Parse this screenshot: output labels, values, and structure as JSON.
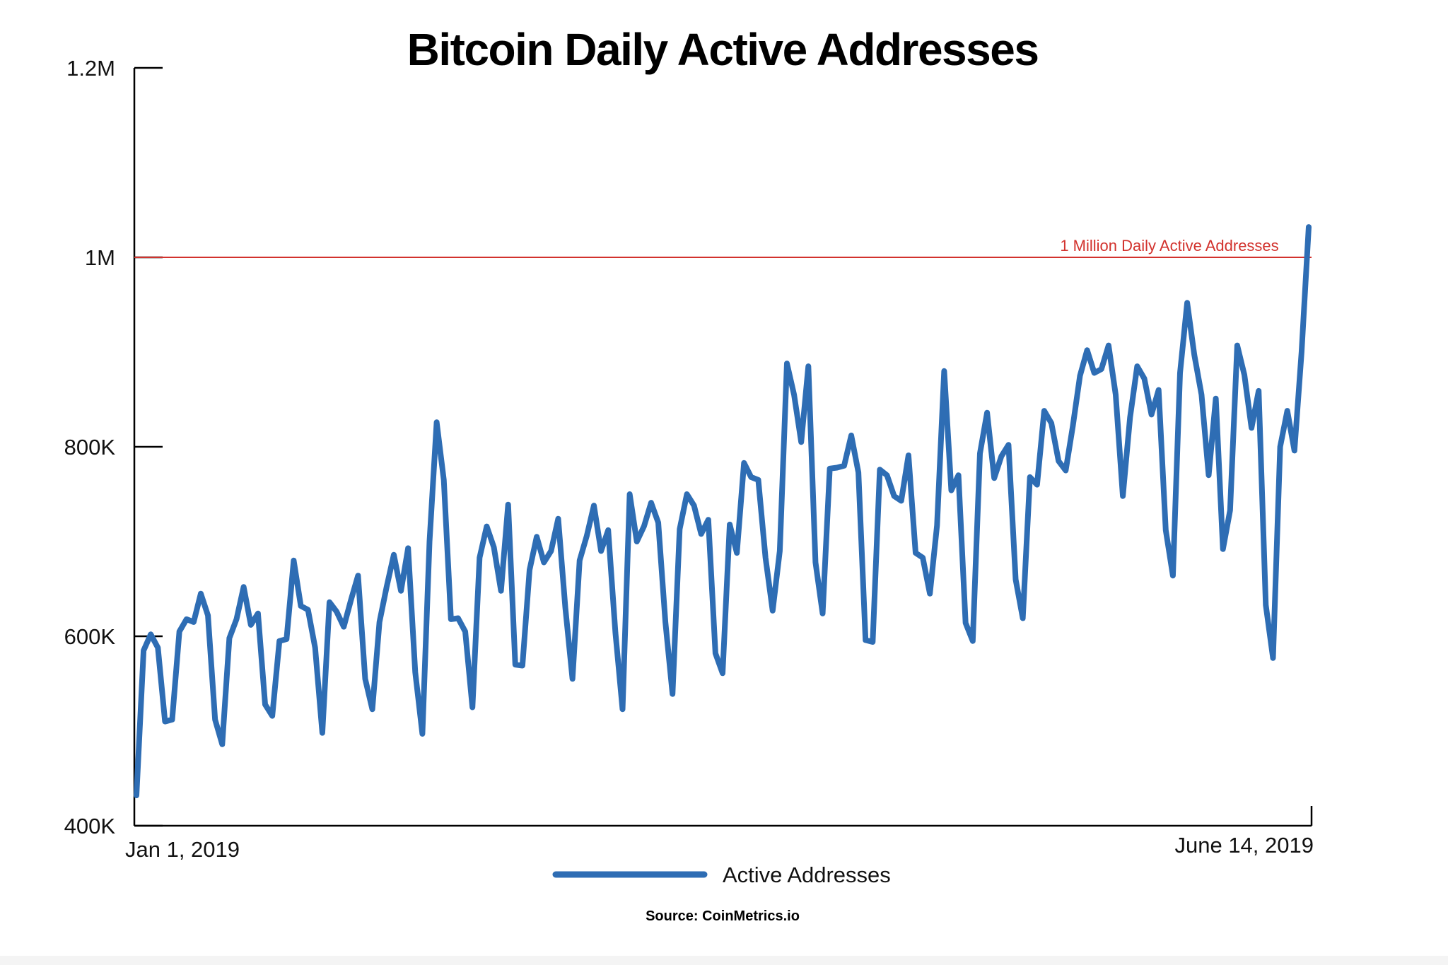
{
  "chart_data": {
    "type": "line",
    "title": "Bitcoin Daily Active Addresses",
    "xlabel": "",
    "ylabel": "",
    "ylim": [
      400000,
      1200000
    ],
    "yticks": [
      {
        "value": 400000,
        "label": "400K"
      },
      {
        "value": 600000,
        "label": "600K"
      },
      {
        "value": 800000,
        "label": "800K"
      },
      {
        "value": 1000000,
        "label": "1M"
      },
      {
        "value": 1200000,
        "label": "1.2M"
      }
    ],
    "x_start_label": "Jan 1, 2019",
    "x_end_label": "June 14, 2019",
    "grid": false,
    "legend_position": "bottom-center",
    "reference_line": {
      "value": 1000000,
      "label": "1 Million Daily Active Addresses",
      "color": "#d2322d"
    },
    "series": [
      {
        "name": "Active Addresses",
        "color": "#2e6db4",
        "x": [
          1,
          2,
          3,
          4,
          5,
          6,
          7,
          8,
          9,
          10,
          11,
          12,
          13,
          14,
          15,
          16,
          17,
          18,
          19,
          20,
          21,
          22,
          23,
          24,
          25,
          26,
          27,
          28,
          29,
          30,
          31,
          32,
          33,
          34,
          35,
          36,
          37,
          38,
          39,
          40,
          41,
          42,
          43,
          44,
          45,
          46,
          47,
          48,
          49,
          50,
          51,
          52,
          53,
          54,
          55,
          56,
          57,
          58,
          59,
          60,
          61,
          62,
          63,
          64,
          65,
          66,
          67,
          68,
          69,
          70,
          71,
          72,
          73,
          74,
          75,
          76,
          77,
          78,
          79,
          80,
          81,
          82,
          83,
          84,
          85,
          86,
          87,
          88,
          89,
          90,
          91,
          92,
          93,
          94,
          95,
          96,
          97,
          98,
          99,
          100,
          101,
          102,
          103,
          104,
          105,
          106,
          107,
          108,
          109,
          110,
          111,
          112,
          113,
          114,
          115,
          116,
          117,
          118,
          119,
          120,
          121,
          122,
          123,
          124,
          125,
          126,
          127,
          128,
          129,
          130,
          131,
          132,
          133,
          134,
          135,
          136,
          137,
          138,
          139,
          140,
          141,
          142,
          143,
          144,
          145,
          146,
          147,
          148,
          149,
          150,
          151,
          152,
          153,
          154,
          155,
          156,
          157,
          158,
          159,
          160,
          161,
          162,
          163,
          164,
          165
        ],
        "values": [
          432000,
          585000,
          602000,
          588000,
          510000,
          512000,
          605000,
          618000,
          615000,
          645000,
          622000,
          512000,
          486000,
          598000,
          618000,
          652000,
          612000,
          624000,
          528000,
          516000,
          595000,
          597000,
          680000,
          632000,
          628000,
          588000,
          498000,
          636000,
          626000,
          610000,
          638000,
          664000,
          555000,
          523000,
          615000,
          652000,
          686000,
          648000,
          693000,
          562000,
          497000,
          700000,
          826000,
          765000,
          618000,
          619000,
          605000,
          525000,
          683000,
          716000,
          694000,
          648000,
          739000,
          570000,
          569000,
          670000,
          705000,
          678000,
          690000,
          724000,
          630000,
          555000,
          680000,
          706000,
          738000,
          690000,
          712000,
          604000,
          523000,
          750000,
          700000,
          716000,
          741000,
          720000,
          615000,
          539000,
          713000,
          750000,
          738000,
          708000,
          723000,
          582000,
          561000,
          718000,
          688000,
          783000,
          768000,
          765000,
          683000,
          627000,
          690000,
          888000,
          855000,
          805000,
          885000,
          678000,
          624000,
          777000,
          778000,
          780000,
          812000,
          773000,
          596000,
          594000,
          776000,
          770000,
          748000,
          743000,
          791000,
          688000,
          683000,
          645000,
          717000,
          880000,
          754000,
          770000,
          614000,
          595000,
          793000,
          836000,
          767000,
          790000,
          802000,
          660000,
          619000,
          768000,
          760000,
          838000,
          825000,
          785000,
          775000,
          822000,
          875000,
          902000,
          878000,
          882000,
          907000,
          855000,
          748000,
          831000,
          885000,
          872000,
          834000,
          860000,
          712000,
          664000,
          878000,
          952000,
          897000,
          855000,
          770000,
          851000,
          692000,
          733000,
          907000,
          876000,
          820000,
          859000,
          633000,
          577000,
          800000,
          838000,
          796000,
          900000,
          1032000
        ]
      }
    ]
  },
  "source": "Source: CoinMetrics.io"
}
